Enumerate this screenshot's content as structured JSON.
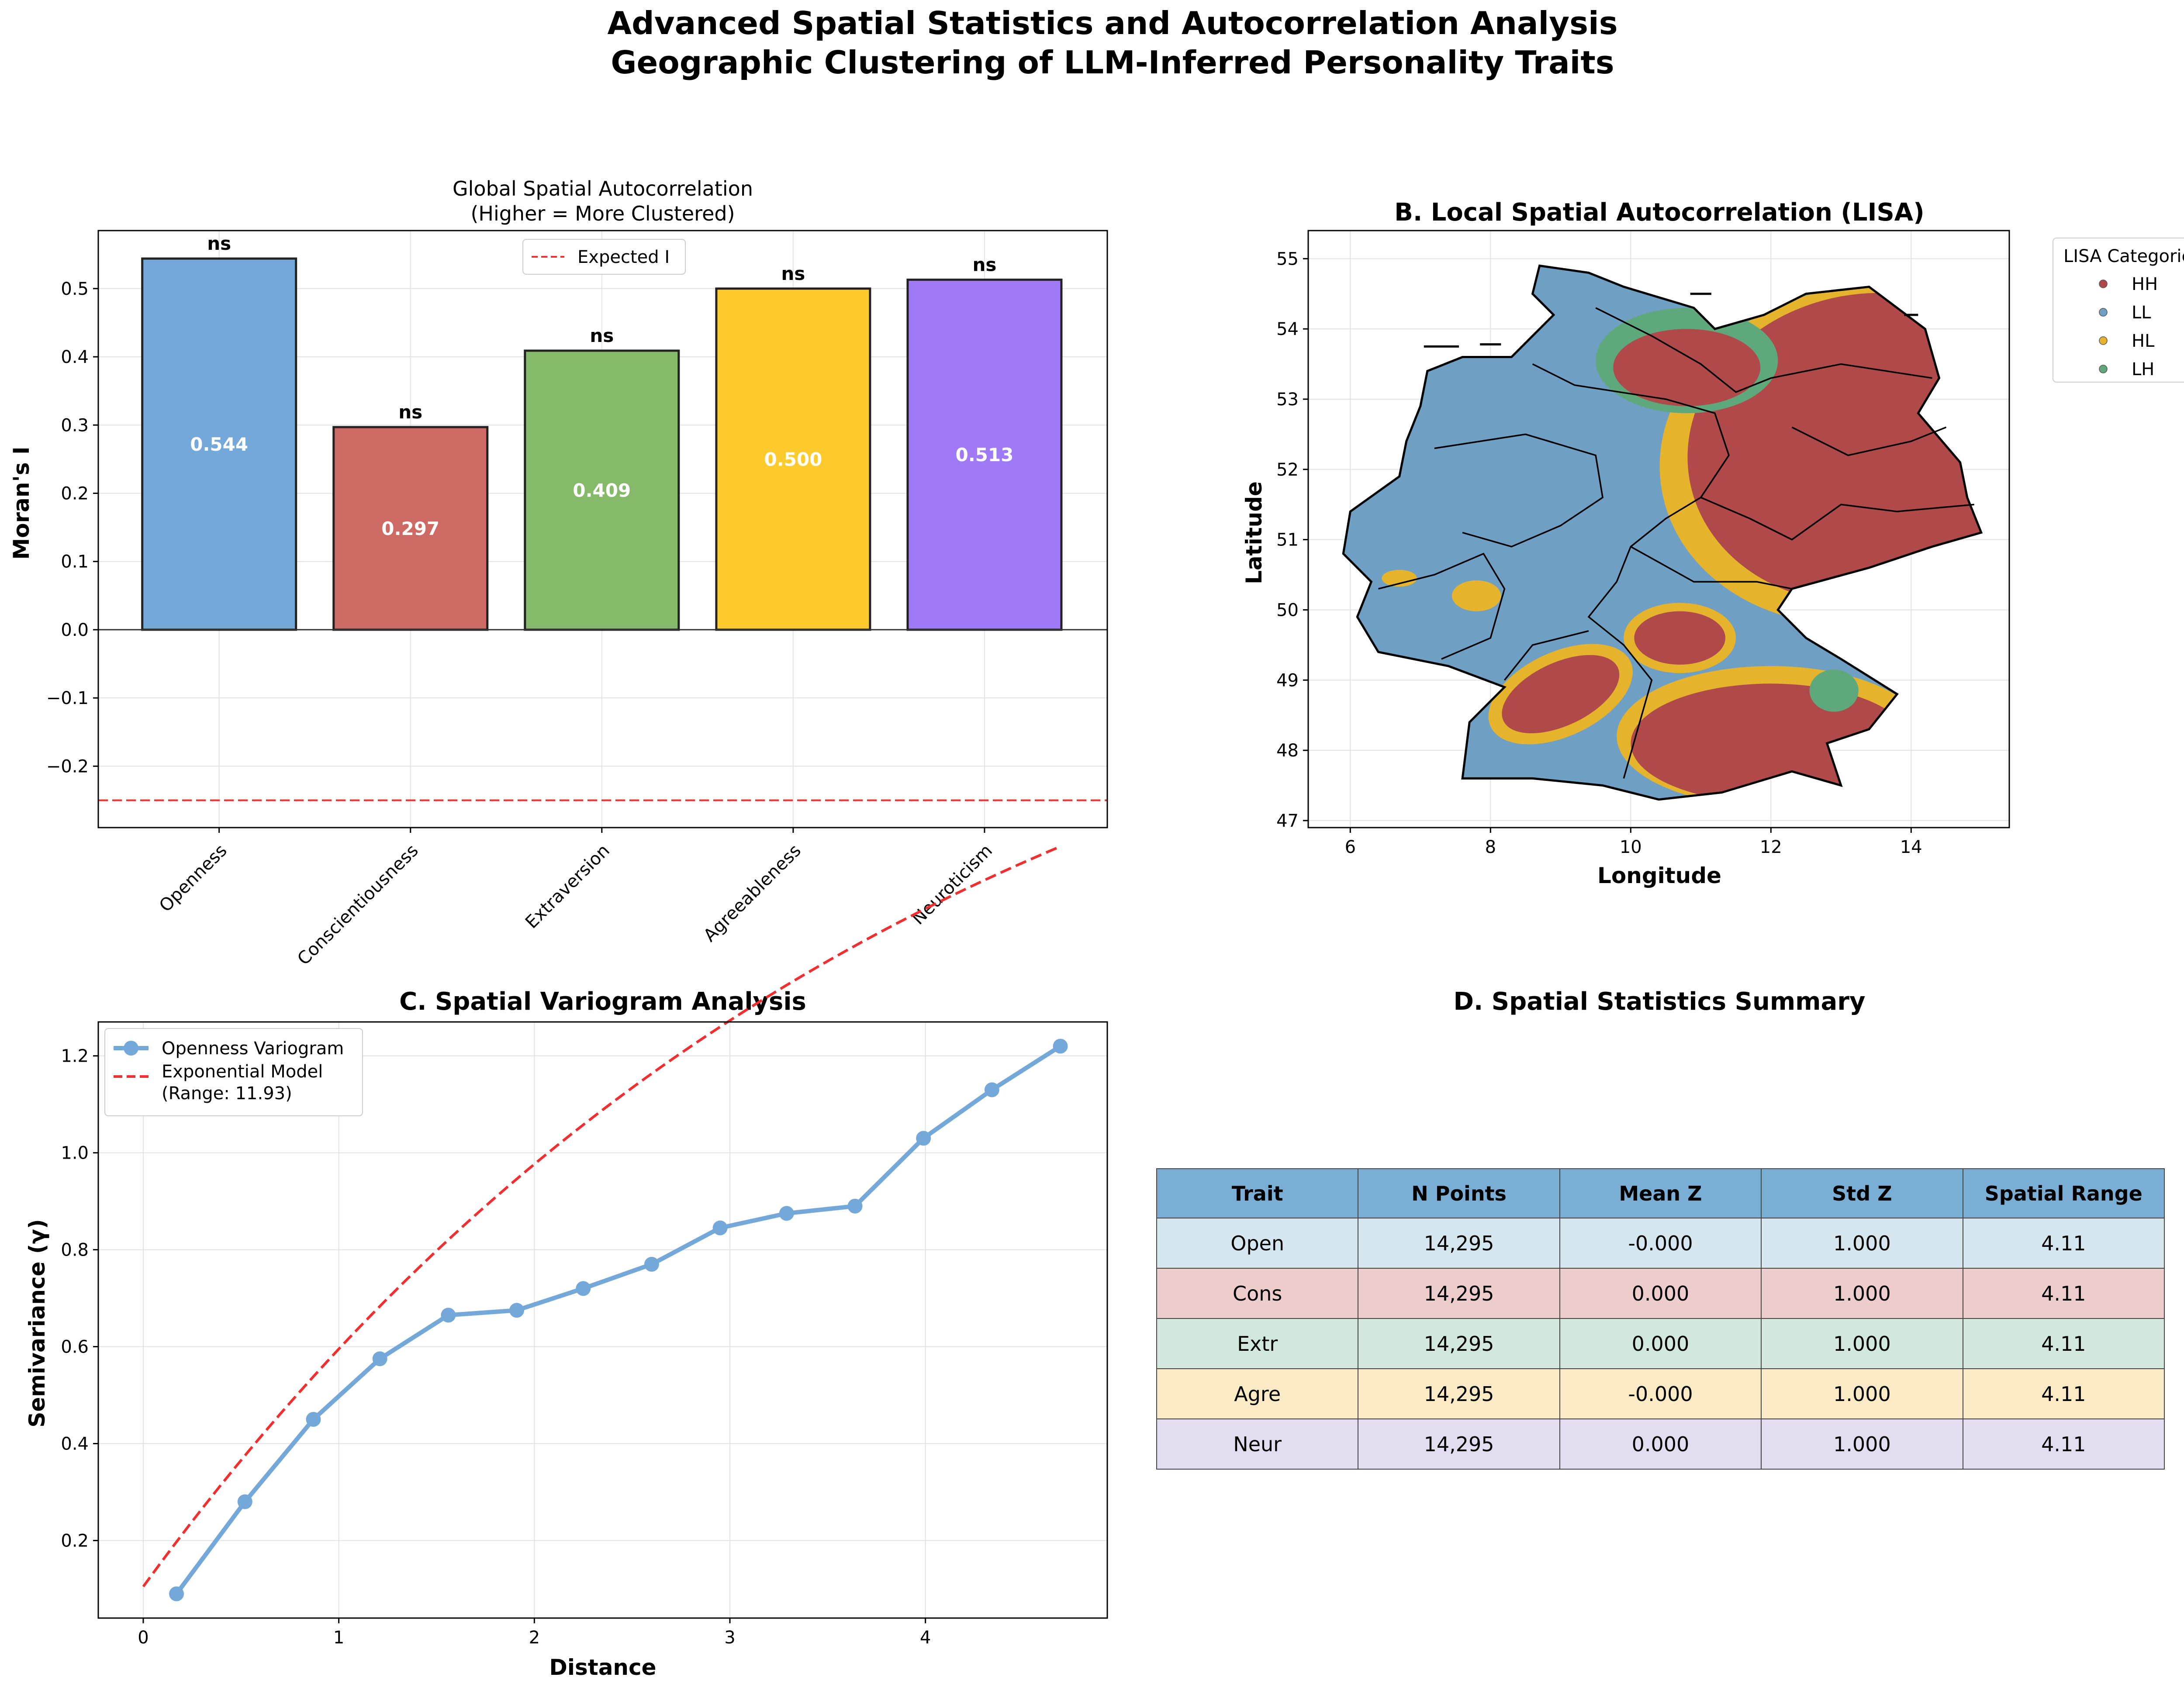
{
  "figure": {
    "title_line1": "Advanced Spatial Statistics and Autocorrelation Analysis",
    "title_line2": "Geographic Clustering of LLM-Inferred Personality Traits"
  },
  "chart_data": [
    {
      "id": "A",
      "type": "bar",
      "title_line1": "Global Spatial Autocorrelation",
      "title_line2": "(Higher = More Clustered)",
      "xlabel": "",
      "ylabel": "Moran's I",
      "categories": [
        "Openness",
        "Conscientiousness",
        "Extraversion",
        "Agreeableness",
        "Neuroticism"
      ],
      "values": [
        0.544,
        0.297,
        0.409,
        0.5,
        0.513
      ],
      "value_labels": [
        "0.544",
        "0.297",
        "0.409",
        "0.500",
        "0.513"
      ],
      "significance": [
        "ns",
        "ns",
        "ns",
        "ns",
        "ns"
      ],
      "colors": [
        "#74a8d9",
        "#cd6a64",
        "#86b96a",
        "#fecb2e",
        "#a079f6"
      ],
      "ylim": [
        -0.29,
        0.585
      ],
      "yticks": [
        -0.2,
        -0.1,
        0.0,
        0.1,
        0.2,
        0.3,
        0.4,
        0.5
      ],
      "ytick_labels": [
        "−0.2",
        "−0.1",
        "0.0",
        "0.1",
        "0.2",
        "0.3",
        "0.4",
        "0.5"
      ],
      "expected_I": -0.25,
      "legend": [
        {
          "name": "Expected I",
          "color": "#f03030",
          "style": "dashed"
        }
      ],
      "legend_position": "top-center",
      "grid": true
    },
    {
      "id": "B",
      "type": "scatter",
      "title": "B. Local Spatial Autocorrelation (LISA)",
      "xlabel": "Longitude",
      "ylabel": "Latitude",
      "xlim": [
        5.4,
        15.4
      ],
      "ylim": [
        46.9,
        55.4
      ],
      "xticks": [
        6,
        8,
        10,
        12,
        14
      ],
      "xtick_labels": [
        "6",
        "8",
        "10",
        "12",
        "14"
      ],
      "yticks": [
        47,
        48,
        49,
        50,
        51,
        52,
        53,
        54,
        55
      ],
      "ytick_labels": [
        "47",
        "48",
        "49",
        "50",
        "51",
        "52",
        "53",
        "54",
        "55"
      ],
      "legend_title": "LISA Categories",
      "categories": [
        {
          "name": "HH",
          "color": "#b04a4a"
        },
        {
          "name": "LL",
          "color": "#6f9fc2"
        },
        {
          "name": "HL",
          "color": "#e6b42c"
        },
        {
          "name": "LH",
          "color": "#5fa87c"
        }
      ],
      "legend_position": "outside-right",
      "grid": true
    },
    {
      "id": "C",
      "type": "line",
      "title": "C. Spatial Variogram Analysis",
      "xlabel": "Distance",
      "ylabel": "Semivariance (γ)",
      "xlim": [
        -0.23,
        4.93
      ],
      "ylim": [
        0.04,
        1.27
      ],
      "xticks": [
        0,
        1,
        2,
        3,
        4
      ],
      "xtick_labels": [
        "0",
        "1",
        "2",
        "3",
        "4"
      ],
      "yticks": [
        0.2,
        0.4,
        0.6,
        0.8,
        1.0,
        1.2
      ],
      "ytick_labels": [
        "0.2",
        "0.4",
        "0.6",
        "0.8",
        "1.0",
        "1.2"
      ],
      "series": [
        {
          "name": "Openness Variogram",
          "color": "#74a8d9",
          "x": [
            0.17,
            0.52,
            0.87,
            1.21,
            1.56,
            1.91,
            2.25,
            2.6,
            2.95,
            3.29,
            3.64,
            3.99,
            4.34,
            4.69
          ],
          "y": [
            0.09,
            0.28,
            0.45,
            0.575,
            0.665,
            0.675,
            0.72,
            0.77,
            0.845,
            0.875,
            0.89,
            1.03,
            1.13,
            1.22
          ]
        },
        {
          "name": "Exponential Model\n(Range: 11.93)",
          "name_line1": "Exponential Model",
          "name_line2": "(Range: 11.93)",
          "color": "#f03030",
          "style": "dashed",
          "nugget": 0.105,
          "sill": 2.31,
          "range": 11.93
        }
      ],
      "legend_position": "top-left",
      "grid": true
    },
    {
      "id": "D",
      "type": "table",
      "title": "D. Spatial Statistics Summary",
      "columns": [
        "Trait",
        "N Points",
        "Mean Z",
        "Std Z",
        "Spatial Range"
      ],
      "header_color": "#7aaed4",
      "rows": [
        {
          "cells": [
            "Open",
            "14,295",
            "-0.000",
            "1.000",
            "4.11"
          ],
          "color": "#d5e6ef"
        },
        {
          "cells": [
            "Cons",
            "14,295",
            "0.000",
            "1.000",
            "4.11"
          ],
          "color": "#eccdcc"
        },
        {
          "cells": [
            "Extr",
            "14,295",
            "0.000",
            "1.000",
            "4.11"
          ],
          "color": "#d3e8dc"
        },
        {
          "cells": [
            "Agre",
            "14,295",
            "-0.000",
            "1.000",
            "4.11"
          ],
          "color": "#faebc6"
        },
        {
          "cells": [
            "Neur",
            "14,295",
            "0.000",
            "1.000",
            "4.11"
          ],
          "color": "#e4ddf0"
        }
      ]
    }
  ]
}
